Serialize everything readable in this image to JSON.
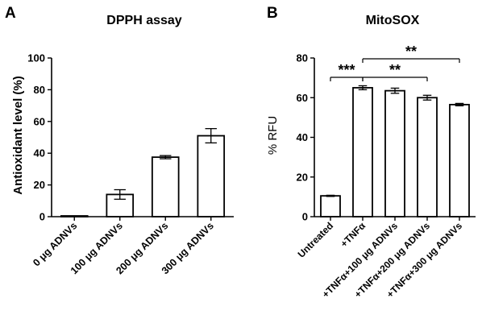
{
  "chart_data": [
    {
      "panel": "A",
      "type": "bar",
      "title": "DPPH assay",
      "ylabel": "Antioxidant level (%)",
      "xlabel": "",
      "ylim": [
        0,
        100
      ],
      "yticks": [
        0,
        20,
        40,
        60,
        80,
        100
      ],
      "categories": [
        "0 μg ADNVs",
        "100 μg ADNVs",
        "200 μg ADNVs",
        "300 μg ADNVs"
      ],
      "values": [
        0.5,
        14,
        37.5,
        51
      ],
      "errors": [
        0,
        3,
        1,
        4.5
      ],
      "bar_fill": "#ffffff",
      "bar_stroke": "#000000",
      "grid": false,
      "legend": "none"
    },
    {
      "panel": "B",
      "type": "bar",
      "title": "MitoSOX",
      "ylabel": "% RFU",
      "xlabel": "",
      "ylim": [
        0,
        80
      ],
      "yticks": [
        0,
        20,
        40,
        60,
        80
      ],
      "categories": [
        "Untreated",
        "+TNFα",
        "+TNFα+100 μg ADNVs",
        "+TNFα+200 μg ADNVs",
        "+TNFα+300 μg ADNVs"
      ],
      "values": [
        10.5,
        65,
        63.5,
        60,
        56.5
      ],
      "errors": [
        0.3,
        1,
        1.3,
        1.2,
        0.6
      ],
      "bar_fill": "#ffffff",
      "bar_stroke": "#000000",
      "grid": false,
      "legend": "none",
      "annotations": [
        {
          "from": 0,
          "to": 1,
          "label": "***"
        },
        {
          "from": 1,
          "to": 3,
          "label": "**"
        },
        {
          "from": 1,
          "to": 4,
          "label": "**"
        }
      ]
    }
  ]
}
